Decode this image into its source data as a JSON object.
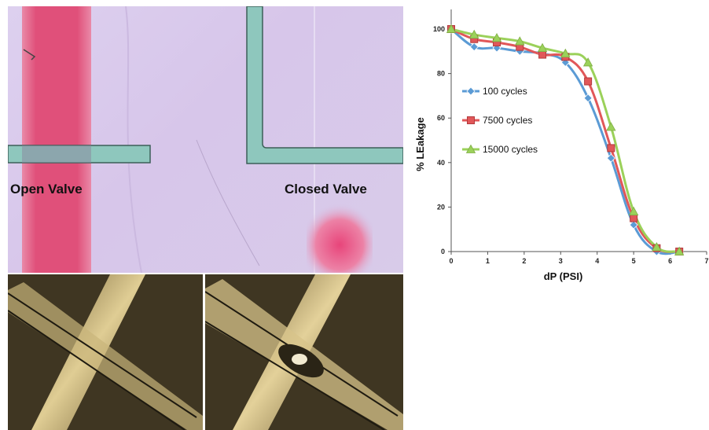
{
  "labels": {
    "open_valve": "Open Valve",
    "closed_valve": "Closed Valve"
  },
  "colors": {
    "fluid_pink": "#e0507a",
    "channel_teal": "#8ec7bd",
    "membrane_bg": "#d8c8ea",
    "pdms_bg": "#3a3220"
  },
  "chart_data": {
    "type": "line",
    "xlabel": "dP (PSI)",
    "ylabel": "% LEakage",
    "xlim": [
      0,
      7
    ],
    "ylim": [
      0,
      100
    ],
    "x_ticks": [
      "0",
      "1",
      "2",
      "3",
      "4",
      "5",
      "6",
      "7"
    ],
    "y_ticks": [
      "0",
      "20",
      "40",
      "60",
      "80",
      "100"
    ],
    "grid": false,
    "legend_position": "left-center",
    "series": [
      {
        "name": "100 cycles",
        "color": "#5b9bd5",
        "marker": "diamond",
        "x": [
          0,
          0.63,
          1.25,
          1.88,
          2.5,
          3.13,
          3.75,
          4.38,
          5.0,
          5.63,
          6.25
        ],
        "y": [
          100,
          92,
          91.5,
          90,
          89,
          85,
          69,
          42,
          12,
          0,
          0
        ]
      },
      {
        "name": "7500 cycles",
        "color": "#e15759",
        "marker": "square",
        "x": [
          0,
          0.63,
          1.25,
          1.88,
          2.5,
          3.13,
          3.75,
          4.38,
          5.0,
          5.63,
          6.25
        ],
        "y": [
          100,
          95.5,
          94,
          92,
          88.5,
          87.5,
          76.5,
          46.5,
          15,
          1.5,
          0
        ]
      },
      {
        "name": "15000 cycles",
        "color": "#9bd15a",
        "marker": "triangle",
        "x": [
          0,
          0.63,
          1.25,
          1.88,
          2.5,
          3.13,
          3.75,
          4.38,
          5.0,
          5.63,
          6.25
        ],
        "y": [
          100,
          97.5,
          96,
          94.5,
          91.5,
          89,
          85,
          56,
          18,
          2,
          0
        ]
      }
    ]
  }
}
